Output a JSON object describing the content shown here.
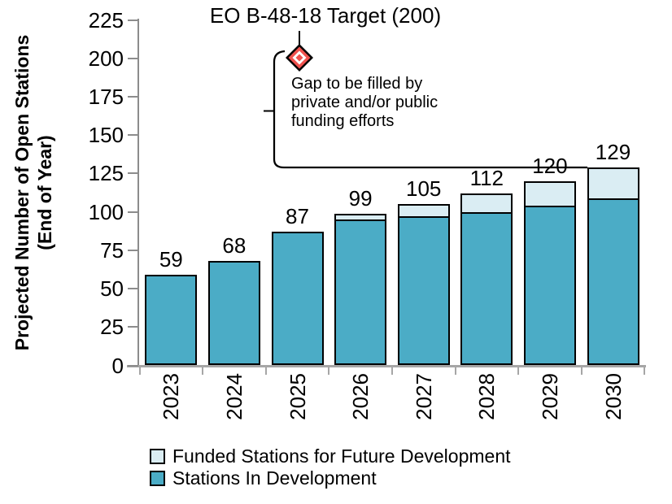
{
  "chart_data": {
    "type": "bar",
    "stacked": true,
    "categories": [
      "2023",
      "2024",
      "2025",
      "2026",
      "2027",
      "2028",
      "2029",
      "2030"
    ],
    "series": [
      {
        "name": "Stations In Development",
        "color": "#4BACC6",
        "values": [
          59,
          68,
          87,
          95,
          97,
          100,
          104,
          109
        ]
      },
      {
        "name": "Funded Stations for Future Development",
        "color": "#DAEDF3",
        "values": [
          0,
          0,
          0,
          4,
          8,
          12,
          16,
          20
        ]
      }
    ],
    "totals": [
      59,
      68,
      87,
      99,
      105,
      112,
      120,
      129
    ],
    "ylabel_line1": "Projected Number of Open Stations",
    "ylabel_line2": "(End of Year)",
    "ylim": [
      0,
      225
    ],
    "ytick_values": [
      0,
      25,
      50,
      75,
      100,
      125,
      150,
      175,
      200,
      225
    ],
    "grid": false,
    "legend_position": "bottom-left",
    "annotations": {
      "target_label": "EO B-48-18 Target (200)",
      "target_value": 200,
      "target_year": "2025",
      "gap_text_lines": [
        "Gap to be filled by",
        "private and/or public",
        "funding efforts"
      ],
      "marker_colors": {
        "outline": "#000000",
        "ring": "#F0524E",
        "inner": "#FFFFFF",
        "center": "#F0524E"
      }
    },
    "axis_colors": {
      "x_axis": "#a6a6a6",
      "y_axis": "#8c8c8c"
    }
  },
  "legend": {
    "items": [
      {
        "label": "Funded Stations for Future Development",
        "color": "#DAEDF3"
      },
      {
        "label": "Stations In Development",
        "color": "#4BACC6"
      }
    ]
  }
}
